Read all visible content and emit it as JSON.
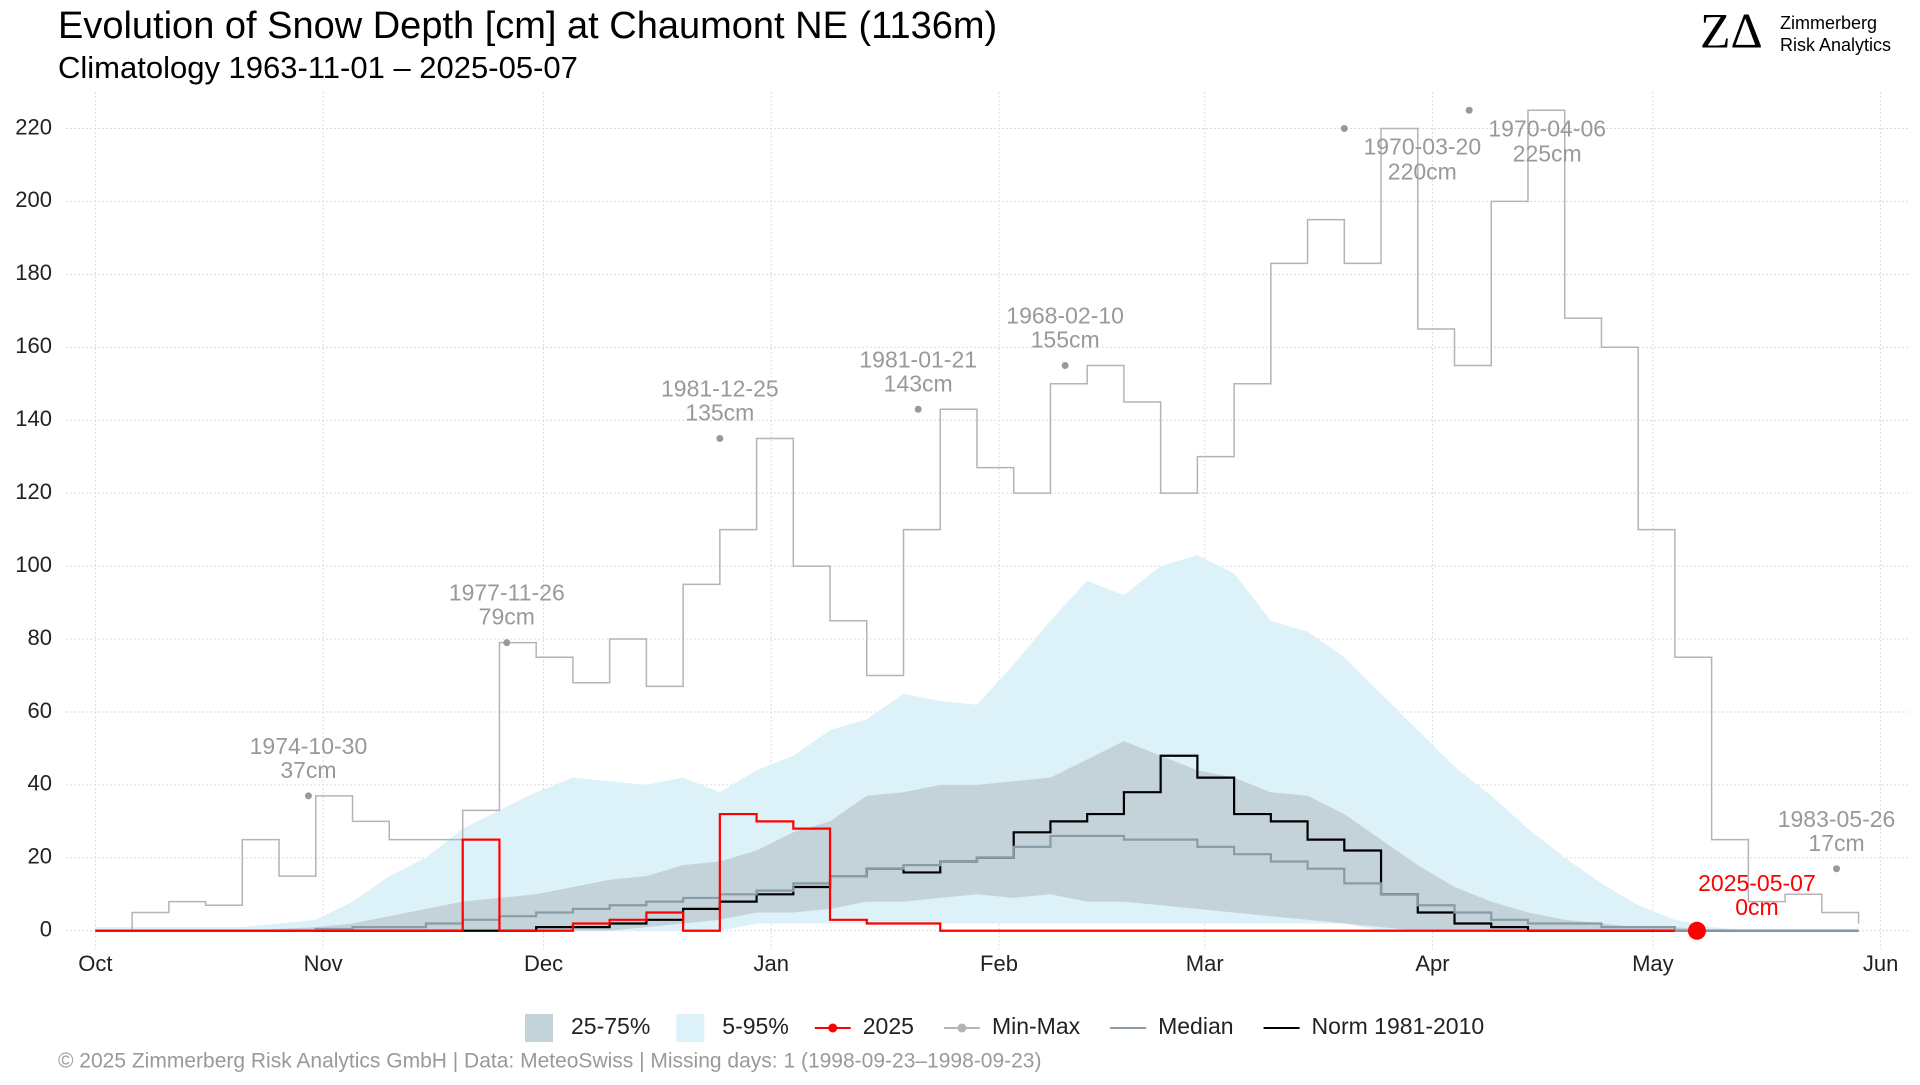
{
  "chart_data": {
    "type": "line",
    "title": "Evolution of Snow Depth [cm] at Chaumont  NE (1136m)",
    "subtitle": "Climatology 1963-11-01 – 2025-05-07",
    "logo": {
      "mark": "ZΔ",
      "line1": "Zimmerberg",
      "line2": "Risk Analytics"
    },
    "caption": "©  2025 Zimmerberg Risk Analytics GmbH | Data: MeteoSwiss | Missing days: 1 (1998-09-23–1998-09-23)",
    "x": [
      0,
      5,
      10,
      15,
      20,
      25,
      30,
      35,
      40,
      45,
      50,
      55,
      60,
      65,
      70,
      75,
      80,
      85,
      90,
      95,
      100,
      105,
      110,
      115,
      120,
      125,
      130,
      135,
      140,
      145,
      150,
      155,
      160,
      165,
      170,
      175,
      180,
      185,
      190,
      195,
      200,
      205,
      210,
      215,
      220,
      225,
      230,
      235,
      240
    ],
    "xlim": [
      -4,
      247
    ],
    "xticks": [
      {
        "value": 0,
        "label": "Oct"
      },
      {
        "value": 31,
        "label": "Nov"
      },
      {
        "value": 61,
        "label": "Dec"
      },
      {
        "value": 92,
        "label": "Jan"
      },
      {
        "value": 123,
        "label": "Feb"
      },
      {
        "value": 151,
        "label": "Mar"
      },
      {
        "value": 182,
        "label": "Apr"
      },
      {
        "value": 212,
        "label": "May"
      },
      {
        "value": 243,
        "label": "Jun"
      }
    ],
    "ylim": [
      -5,
      230
    ],
    "yticks": [
      0,
      20,
      40,
      60,
      80,
      100,
      120,
      140,
      160,
      180,
      200,
      220
    ],
    "grid": true,
    "bands": [
      {
        "name": "25-75%",
        "color": "#c3d3d9",
        "lower": [
          0,
          0,
          0,
          0,
          0,
          0,
          0,
          0,
          0,
          0,
          0,
          0,
          0,
          0,
          0,
          1,
          2,
          3,
          5,
          5,
          6,
          8,
          8,
          9,
          10,
          9,
          10,
          8,
          8,
          7,
          6,
          5,
          4,
          3,
          2,
          1,
          0,
          0,
          0,
          0,
          0,
          0,
          0,
          0,
          0,
          0,
          0,
          0,
          0
        ],
        "upper": [
          0,
          0,
          0,
          0,
          0,
          0.5,
          1,
          2,
          4,
          6,
          8,
          9,
          10,
          12,
          14,
          15,
          18,
          19,
          22,
          27,
          30,
          37,
          38,
          40,
          40,
          41,
          42,
          47,
          52,
          48,
          44,
          42,
          38,
          37,
          32,
          25,
          18,
          12,
          8,
          5,
          3,
          2,
          1,
          1,
          0,
          0,
          0,
          0,
          0
        ]
      },
      {
        "name": "5-95%",
        "color": "#ddf1f8",
        "lower": [
          0,
          0,
          0,
          0,
          0,
          0,
          0,
          0,
          0,
          0,
          0,
          0,
          0,
          0,
          0,
          0,
          0,
          0,
          2,
          2,
          2,
          2,
          2,
          2,
          2,
          2,
          2,
          2,
          2,
          2,
          2,
          2,
          2,
          2,
          2,
          0,
          0,
          0,
          0,
          0,
          0,
          0,
          0,
          0,
          0,
          0,
          0,
          0,
          0
        ],
        "upper": [
          1,
          1,
          1,
          1,
          1,
          2,
          3,
          8,
          15,
          20,
          28,
          33,
          38,
          42,
          41,
          40,
          42,
          38,
          44,
          48,
          55,
          58,
          65,
          63,
          62,
          73,
          85,
          96,
          92,
          100,
          103,
          98,
          85,
          82,
          75,
          65,
          55,
          45,
          37,
          28,
          20,
          13,
          7,
          3,
          1,
          0,
          0,
          0,
          0
        ]
      }
    ],
    "series": [
      {
        "name": "2025",
        "color": "#ff0000",
        "marker": true,
        "values": [
          0,
          0,
          0,
          0,
          0,
          0,
          0,
          0,
          0,
          0,
          25,
          0,
          0,
          2,
          3,
          5,
          0,
          32,
          30,
          28,
          3,
          2,
          2,
          0,
          0,
          0,
          0,
          0,
          0,
          0,
          0,
          0,
          0,
          0,
          0,
          0,
          0,
          0,
          0,
          0,
          0,
          0,
          0,
          0,
          null,
          null,
          null,
          null,
          null
        ]
      },
      {
        "name": "Min-Max",
        "color": "#b4b4b4",
        "marker": true,
        "values": [
          0,
          5,
          8,
          7,
          25,
          15,
          37,
          30,
          25,
          25,
          33,
          79,
          75,
          68,
          80,
          67,
          95,
          110,
          135,
          100,
          85,
          70,
          110,
          143,
          127,
          120,
          150,
          155,
          145,
          120,
          130,
          150,
          183,
          195,
          183,
          220,
          165,
          155,
          200,
          225,
          168,
          160,
          110,
          75,
          25,
          8,
          10,
          5,
          2
        ]
      },
      {
        "name": "Median",
        "color": "#8a9ba6",
        "marker": false,
        "values": [
          0,
          0,
          0,
          0,
          0,
          0,
          0.5,
          1,
          1,
          2,
          3,
          4,
          5,
          6,
          7,
          8,
          9,
          10,
          11,
          13,
          15,
          17,
          18,
          19,
          20,
          23,
          26,
          26,
          25,
          25,
          23,
          21,
          19,
          17,
          13,
          10,
          7,
          5,
          3,
          2,
          2,
          1,
          1,
          0,
          0,
          0,
          0,
          0,
          0
        ]
      },
      {
        "name": "Norm 1981-2010",
        "color": "#000000",
        "marker": false,
        "values": [
          0,
          0,
          0,
          0,
          0,
          0,
          0,
          0,
          0,
          0,
          0,
          0,
          1,
          1,
          2,
          3,
          6,
          8,
          10,
          12,
          15,
          17,
          16,
          19,
          20,
          27,
          30,
          32,
          38,
          48,
          42,
          32,
          30,
          25,
          22,
          10,
          5,
          2,
          1,
          0,
          0,
          0,
          0,
          0,
          0,
          0,
          0,
          0,
          0
        ]
      }
    ],
    "annotations": [
      {
        "date": "1974-10-30",
        "text": "37cm",
        "x": 29,
        "y": 37,
        "color": "#999999"
      },
      {
        "date": "1977-11-26",
        "text": "79cm",
        "x": 56,
        "y": 79,
        "color": "#999999"
      },
      {
        "date": "1981-12-25",
        "text": "135cm",
        "x": 85,
        "y": 135,
        "color": "#999999"
      },
      {
        "date": "1981-01-21",
        "text": "143cm",
        "x": 112,
        "y": 143,
        "color": "#999999"
      },
      {
        "date": "1968-02-10",
        "text": "155cm",
        "x": 132,
        "y": 155,
        "color": "#999999"
      },
      {
        "date": "1970-03-20",
        "text": "220cm",
        "x": 170,
        "y": 220,
        "color": "#999999"
      },
      {
        "date": "1970-04-06",
        "text": "225cm",
        "x": 187,
        "y": 225,
        "color": "#999999"
      },
      {
        "date": "1983-05-26",
        "text": "17cm",
        "x": 237,
        "y": 17,
        "color": "#999999"
      },
      {
        "date": "2025-05-07",
        "text": "0cm",
        "x": 218,
        "y": 0,
        "color": "#ff0000"
      }
    ]
  }
}
